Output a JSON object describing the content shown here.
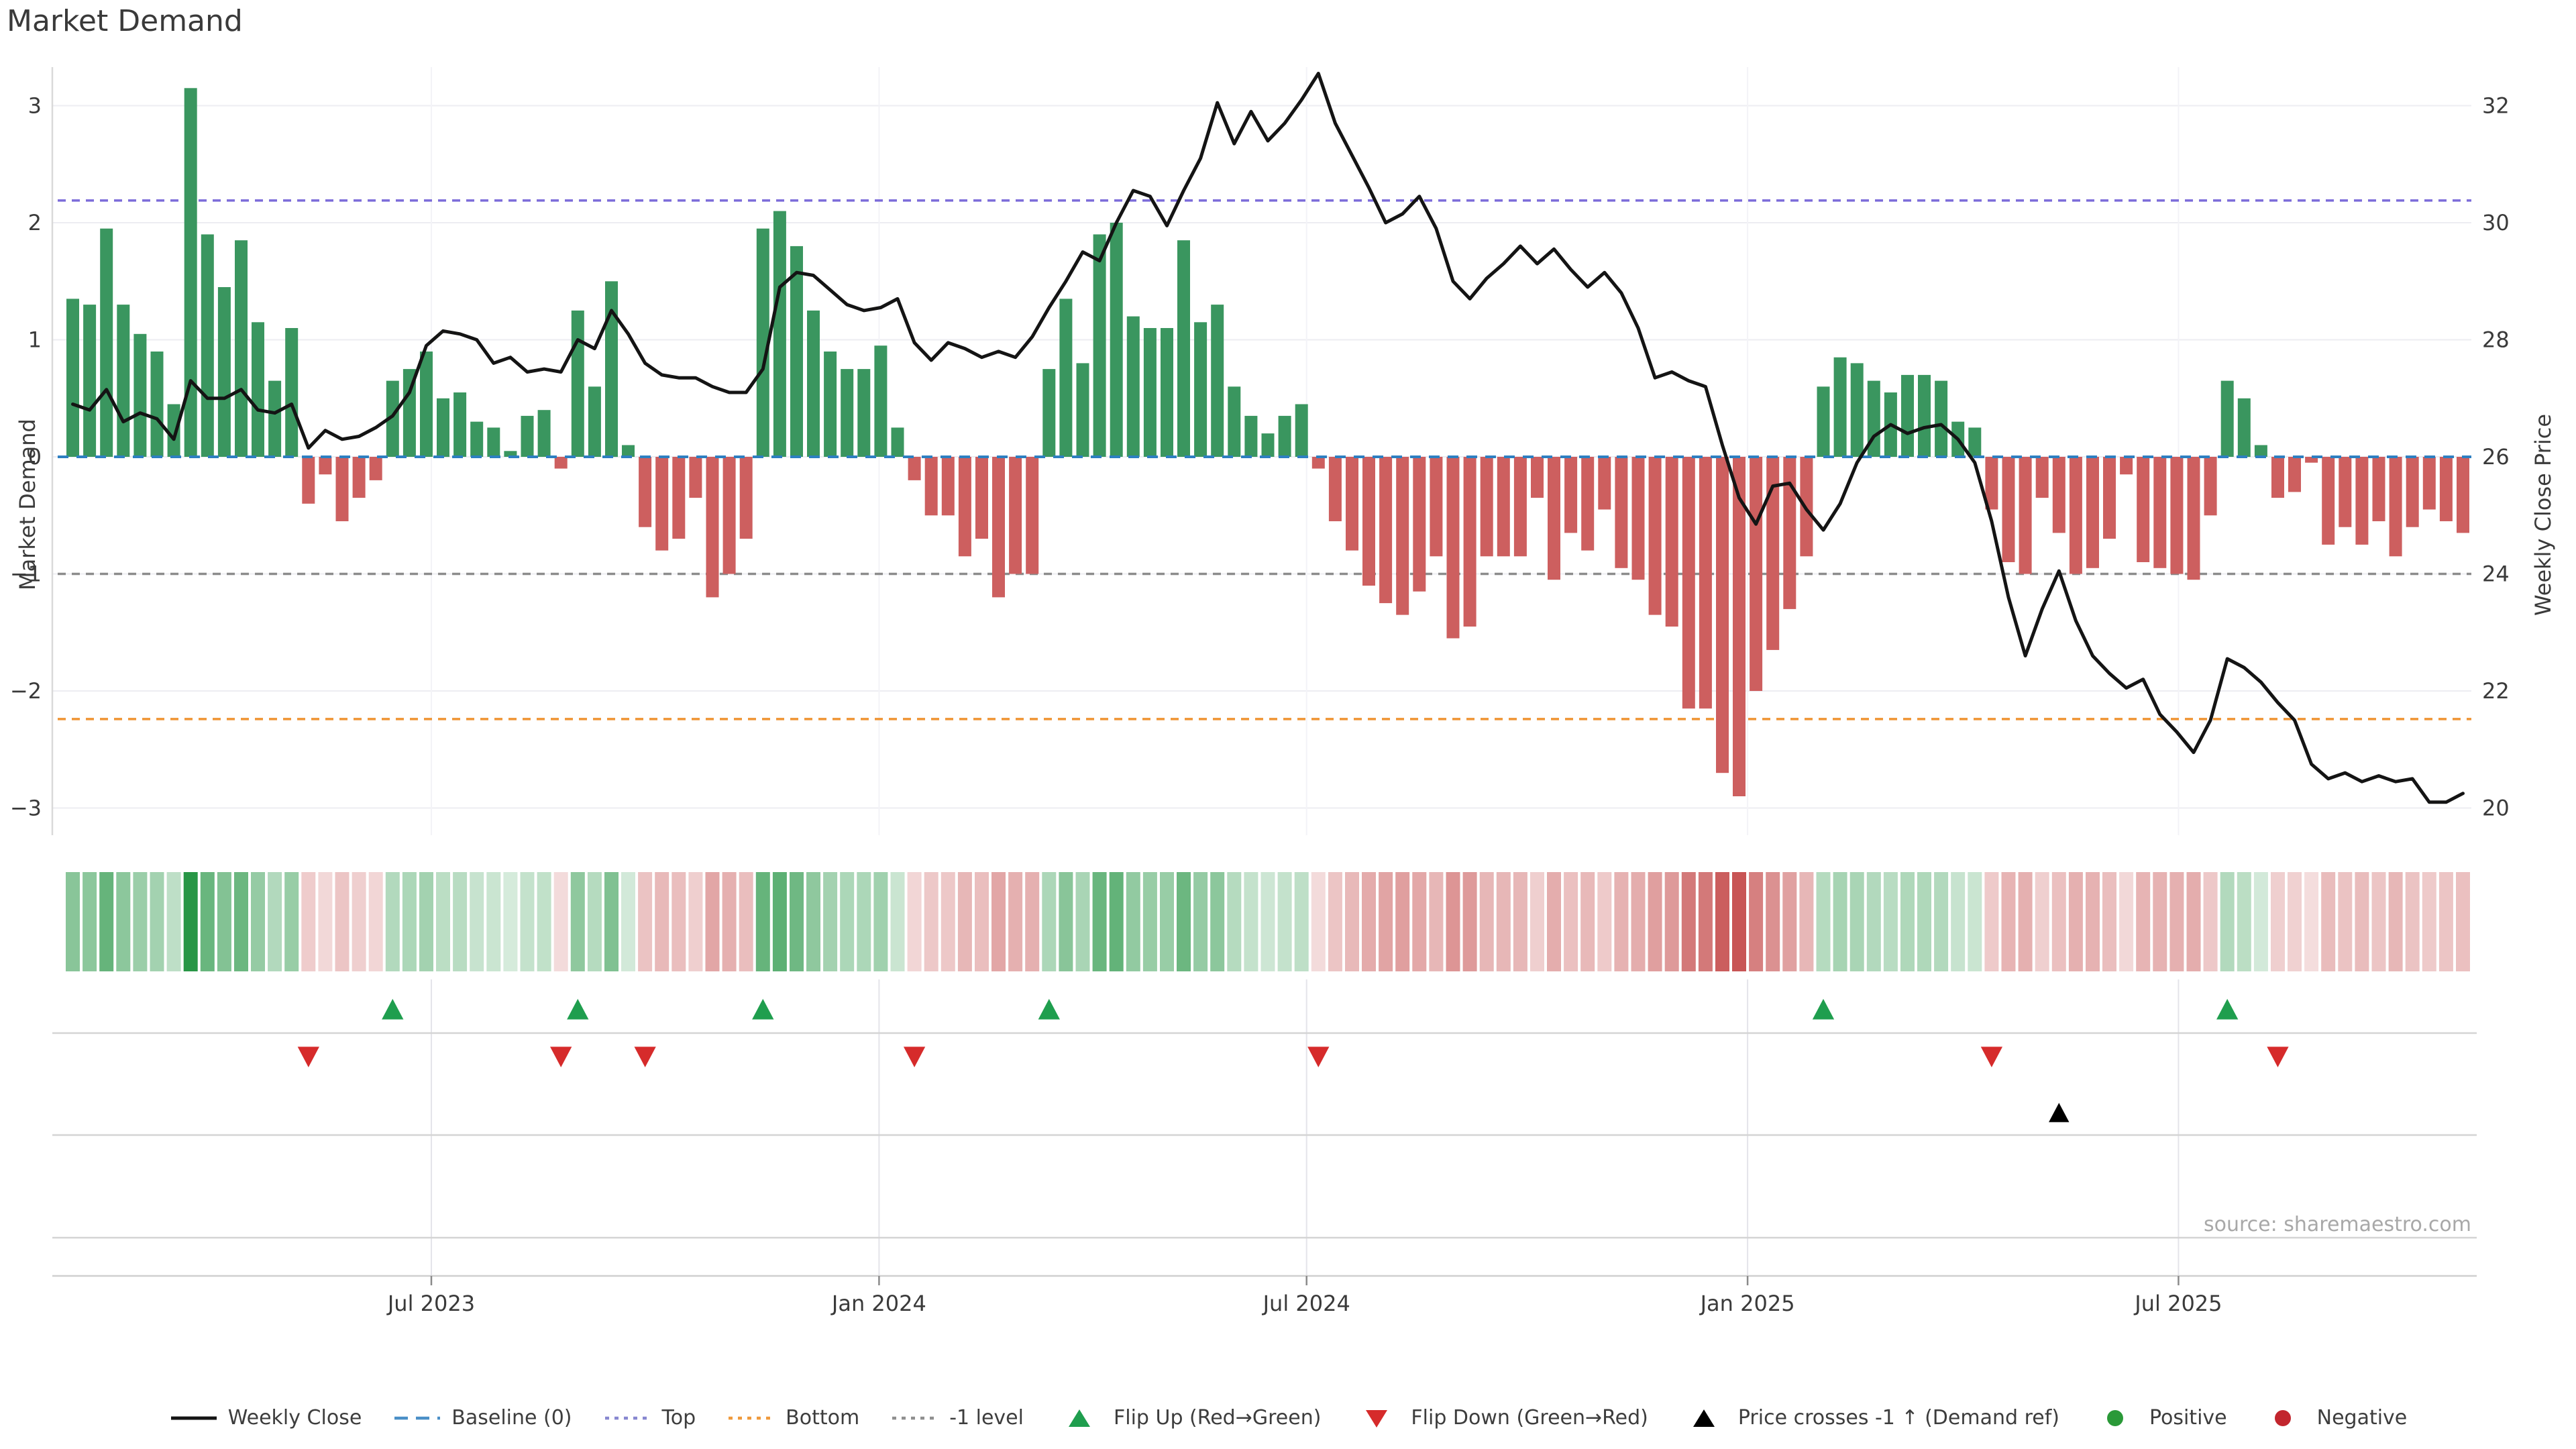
{
  "title": "Market Demand",
  "source_text": "source: sharemaestro.com",
  "colors": {
    "bar_positive": "#3a965f",
    "bar_negative": "#cd5f5f",
    "price_line": "#141414",
    "baseline": "#2d7fc1",
    "top_line": "#7c6cd9",
    "bottom_line": "#ef9434",
    "minus_one_line": "#8c8c8c",
    "flip_up_marker": "#1f9e4e",
    "flip_down_marker": "#d62b2b",
    "price_cross_marker": "#000000",
    "grid": "#ededf2",
    "grid_vertical": "#f3f3f7",
    "row_grid": "#e4e4ea",
    "row_line": "#d4d4d4",
    "axis_spine": "#cfcfcf",
    "tick_text": "#3a3a3a"
  },
  "chart_data": {
    "type": "bar+line combo with heatmap strip and event marker rows",
    "title": "Market Demand",
    "n_weeks": 143,
    "left_axis": {
      "label": "Market Demand",
      "ticks": [
        {
          "label": "3",
          "value": 3
        },
        {
          "label": "2",
          "value": 2
        },
        {
          "label": "1",
          "value": 1
        },
        {
          "label": "0",
          "value": 0
        },
        {
          "label": "−1",
          "value": -1
        },
        {
          "label": "−2",
          "value": -2
        },
        {
          "label": "−3",
          "value": -3
        }
      ],
      "range": [
        -3.35,
        3.35
      ]
    },
    "right_axis": {
      "label": "Weekly Close Price",
      "ticks": [
        {
          "label": "32",
          "value": 32
        },
        {
          "label": "30",
          "value": 30
        },
        {
          "label": "28",
          "value": 28
        },
        {
          "label": "26",
          "value": 26
        },
        {
          "label": "24",
          "value": 24
        },
        {
          "label": "22",
          "value": 22
        },
        {
          "label": "20",
          "value": 20
        }
      ],
      "range": [
        19.3,
        32.7
      ]
    },
    "x_axis": {
      "ticks": [
        {
          "label": "Jul 2023",
          "week": 21.3
        },
        {
          "label": "Jan 2024",
          "week": 47.9
        },
        {
          "label": "Jul 2024",
          "week": 73.3
        },
        {
          "label": "Jan 2025",
          "week": 99.5
        },
        {
          "label": "Jul 2025",
          "week": 125.1
        }
      ]
    },
    "reference_lines": {
      "baseline": 0,
      "top": 2.19,
      "bottom": -2.24,
      "minus_one": -1
    },
    "series": [
      {
        "name": "Market Demand (weekly bars, green positive / red negative)",
        "values": [
          1.35,
          1.3,
          1.95,
          1.3,
          1.05,
          0.9,
          0.45,
          3.15,
          1.9,
          1.45,
          1.85,
          1.15,
          0.65,
          1.1,
          -0.4,
          -0.15,
          -0.55,
          -0.35,
          -0.2,
          0.65,
          0.75,
          0.9,
          0.5,
          0.55,
          0.3,
          0.25,
          0.05,
          0.35,
          0.4,
          -0.1,
          1.25,
          0.6,
          1.5,
          0.1,
          -0.6,
          -0.8,
          -0.7,
          -0.35,
          -1.2,
          -1.0,
          -0.7,
          1.95,
          2.1,
          1.8,
          1.25,
          0.9,
          0.75,
          0.75,
          0.95,
          0.25,
          -0.2,
          -0.5,
          -0.5,
          -0.85,
          -0.7,
          -1.2,
          -1.0,
          -1.0,
          0.75,
          1.35,
          0.8,
          1.9,
          2.0,
          1.2,
          1.1,
          1.1,
          1.85,
          1.15,
          1.3,
          0.6,
          0.35,
          0.2,
          0.35,
          0.45,
          -0.1,
          -0.55,
          -0.8,
          -1.1,
          -1.25,
          -1.35,
          -1.15,
          -0.85,
          -1.55,
          -1.45,
          -0.85,
          -0.85,
          -0.85,
          -0.35,
          -1.05,
          -0.65,
          -0.8,
          -0.45,
          -0.95,
          -1.05,
          -1.35,
          -1.45,
          -2.15,
          -2.15,
          -2.7,
          -2.9,
          -2.0,
          -1.65,
          -1.3,
          -0.85,
          0.6,
          0.85,
          0.8,
          0.65,
          0.55,
          0.7,
          0.7,
          0.65,
          0.3,
          0.25,
          -0.45,
          -0.9,
          -1.0,
          -0.35,
          -0.65,
          -1.0,
          -0.95,
          -0.7,
          -0.15,
          -0.9,
          -0.95,
          -1.0,
          -1.05,
          -0.5,
          0.65,
          0.5,
          0.1,
          -0.35,
          -0.3,
          -0.05,
          -0.75,
          -0.6,
          -0.75,
          -0.55,
          -0.85,
          -0.6,
          -0.45,
          -0.55,
          -0.65
        ]
      },
      {
        "name": "Weekly Close (black line, right axis)",
        "values": [
          26.9,
          26.8,
          27.15,
          26.6,
          26.75,
          26.65,
          26.3,
          27.3,
          27.0,
          27.0,
          27.15,
          26.8,
          26.75,
          26.9,
          26.15,
          26.45,
          26.3,
          26.35,
          26.5,
          26.7,
          27.1,
          27.9,
          28.15,
          28.1,
          28.0,
          27.6,
          27.7,
          27.45,
          27.5,
          27.45,
          28.0,
          27.85,
          28.5,
          28.1,
          27.6,
          27.4,
          27.35,
          27.35,
          27.2,
          27.1,
          27.1,
          27.5,
          28.9,
          29.15,
          29.1,
          28.85,
          28.6,
          28.5,
          28.55,
          28.7,
          27.95,
          27.65,
          27.95,
          27.85,
          27.7,
          27.8,
          27.7,
          28.05,
          28.55,
          29.0,
          29.5,
          29.35,
          30.0,
          30.55,
          30.45,
          29.95,
          30.55,
          31.1,
          32.05,
          31.35,
          31.9,
          31.4,
          31.7,
          32.1,
          32.55,
          31.7,
          31.15,
          30.6,
          30.0,
          30.15,
          30.45,
          29.9,
          29.0,
          28.7,
          29.05,
          29.3,
          29.6,
          29.3,
          29.55,
          29.2,
          28.9,
          29.15,
          28.8,
          28.2,
          27.35,
          27.45,
          27.3,
          27.2,
          26.2,
          25.3,
          24.85,
          25.5,
          25.55,
          25.1,
          24.75,
          25.2,
          25.9,
          26.35,
          26.55,
          26.4,
          26.5,
          26.55,
          26.3,
          25.9,
          24.9,
          23.6,
          22.6,
          23.4,
          24.05,
          23.2,
          22.6,
          22.3,
          22.05,
          22.2,
          21.6,
          21.3,
          20.95,
          21.5,
          22.55,
          22.4,
          22.15,
          21.8,
          21.5,
          20.75,
          20.5,
          20.6,
          20.45,
          20.55,
          20.45,
          20.5,
          20.1,
          20.1,
          20.25
        ]
      }
    ],
    "heatmap_strip": "per-week color cells, green intensity for positive demand, red intensity for negative demand",
    "markers": {
      "flip_up_weeks": [
        19,
        30,
        41,
        58,
        104,
        128
      ],
      "flip_down_weeks": [
        14,
        29,
        34,
        50,
        74,
        114,
        131
      ],
      "price_cross_weeks": [
        118
      ]
    },
    "legend_position": "bottom center",
    "grid": true
  },
  "legend": {
    "items": [
      {
        "icon": "line",
        "color": "#141414",
        "label": "Weekly Close"
      },
      {
        "icon": "dash",
        "color": "#4a8fc7",
        "label": "Baseline (0)"
      },
      {
        "icon": "dots",
        "color": "#8787d0",
        "label": "Top"
      },
      {
        "icon": "dots",
        "color": "#ef9a3d",
        "label": "Bottom"
      },
      {
        "icon": "dots",
        "color": "#8f8f8f",
        "label": "-1 level"
      },
      {
        "icon": "tri-up",
        "color": "#1f9e4e",
        "label": "Flip Up (Red→Green)"
      },
      {
        "icon": "tri-down",
        "color": "#d62b2b",
        "label": "Flip Down (Green→Red)"
      },
      {
        "icon": "tri-up",
        "color": "#000000",
        "label": "Price crosses -1 ↑ (Demand ref)"
      },
      {
        "icon": "dot",
        "color": "#2a9938",
        "label": "Positive"
      },
      {
        "icon": "dot",
        "color": "#c2262e",
        "label": "Negative"
      }
    ]
  }
}
